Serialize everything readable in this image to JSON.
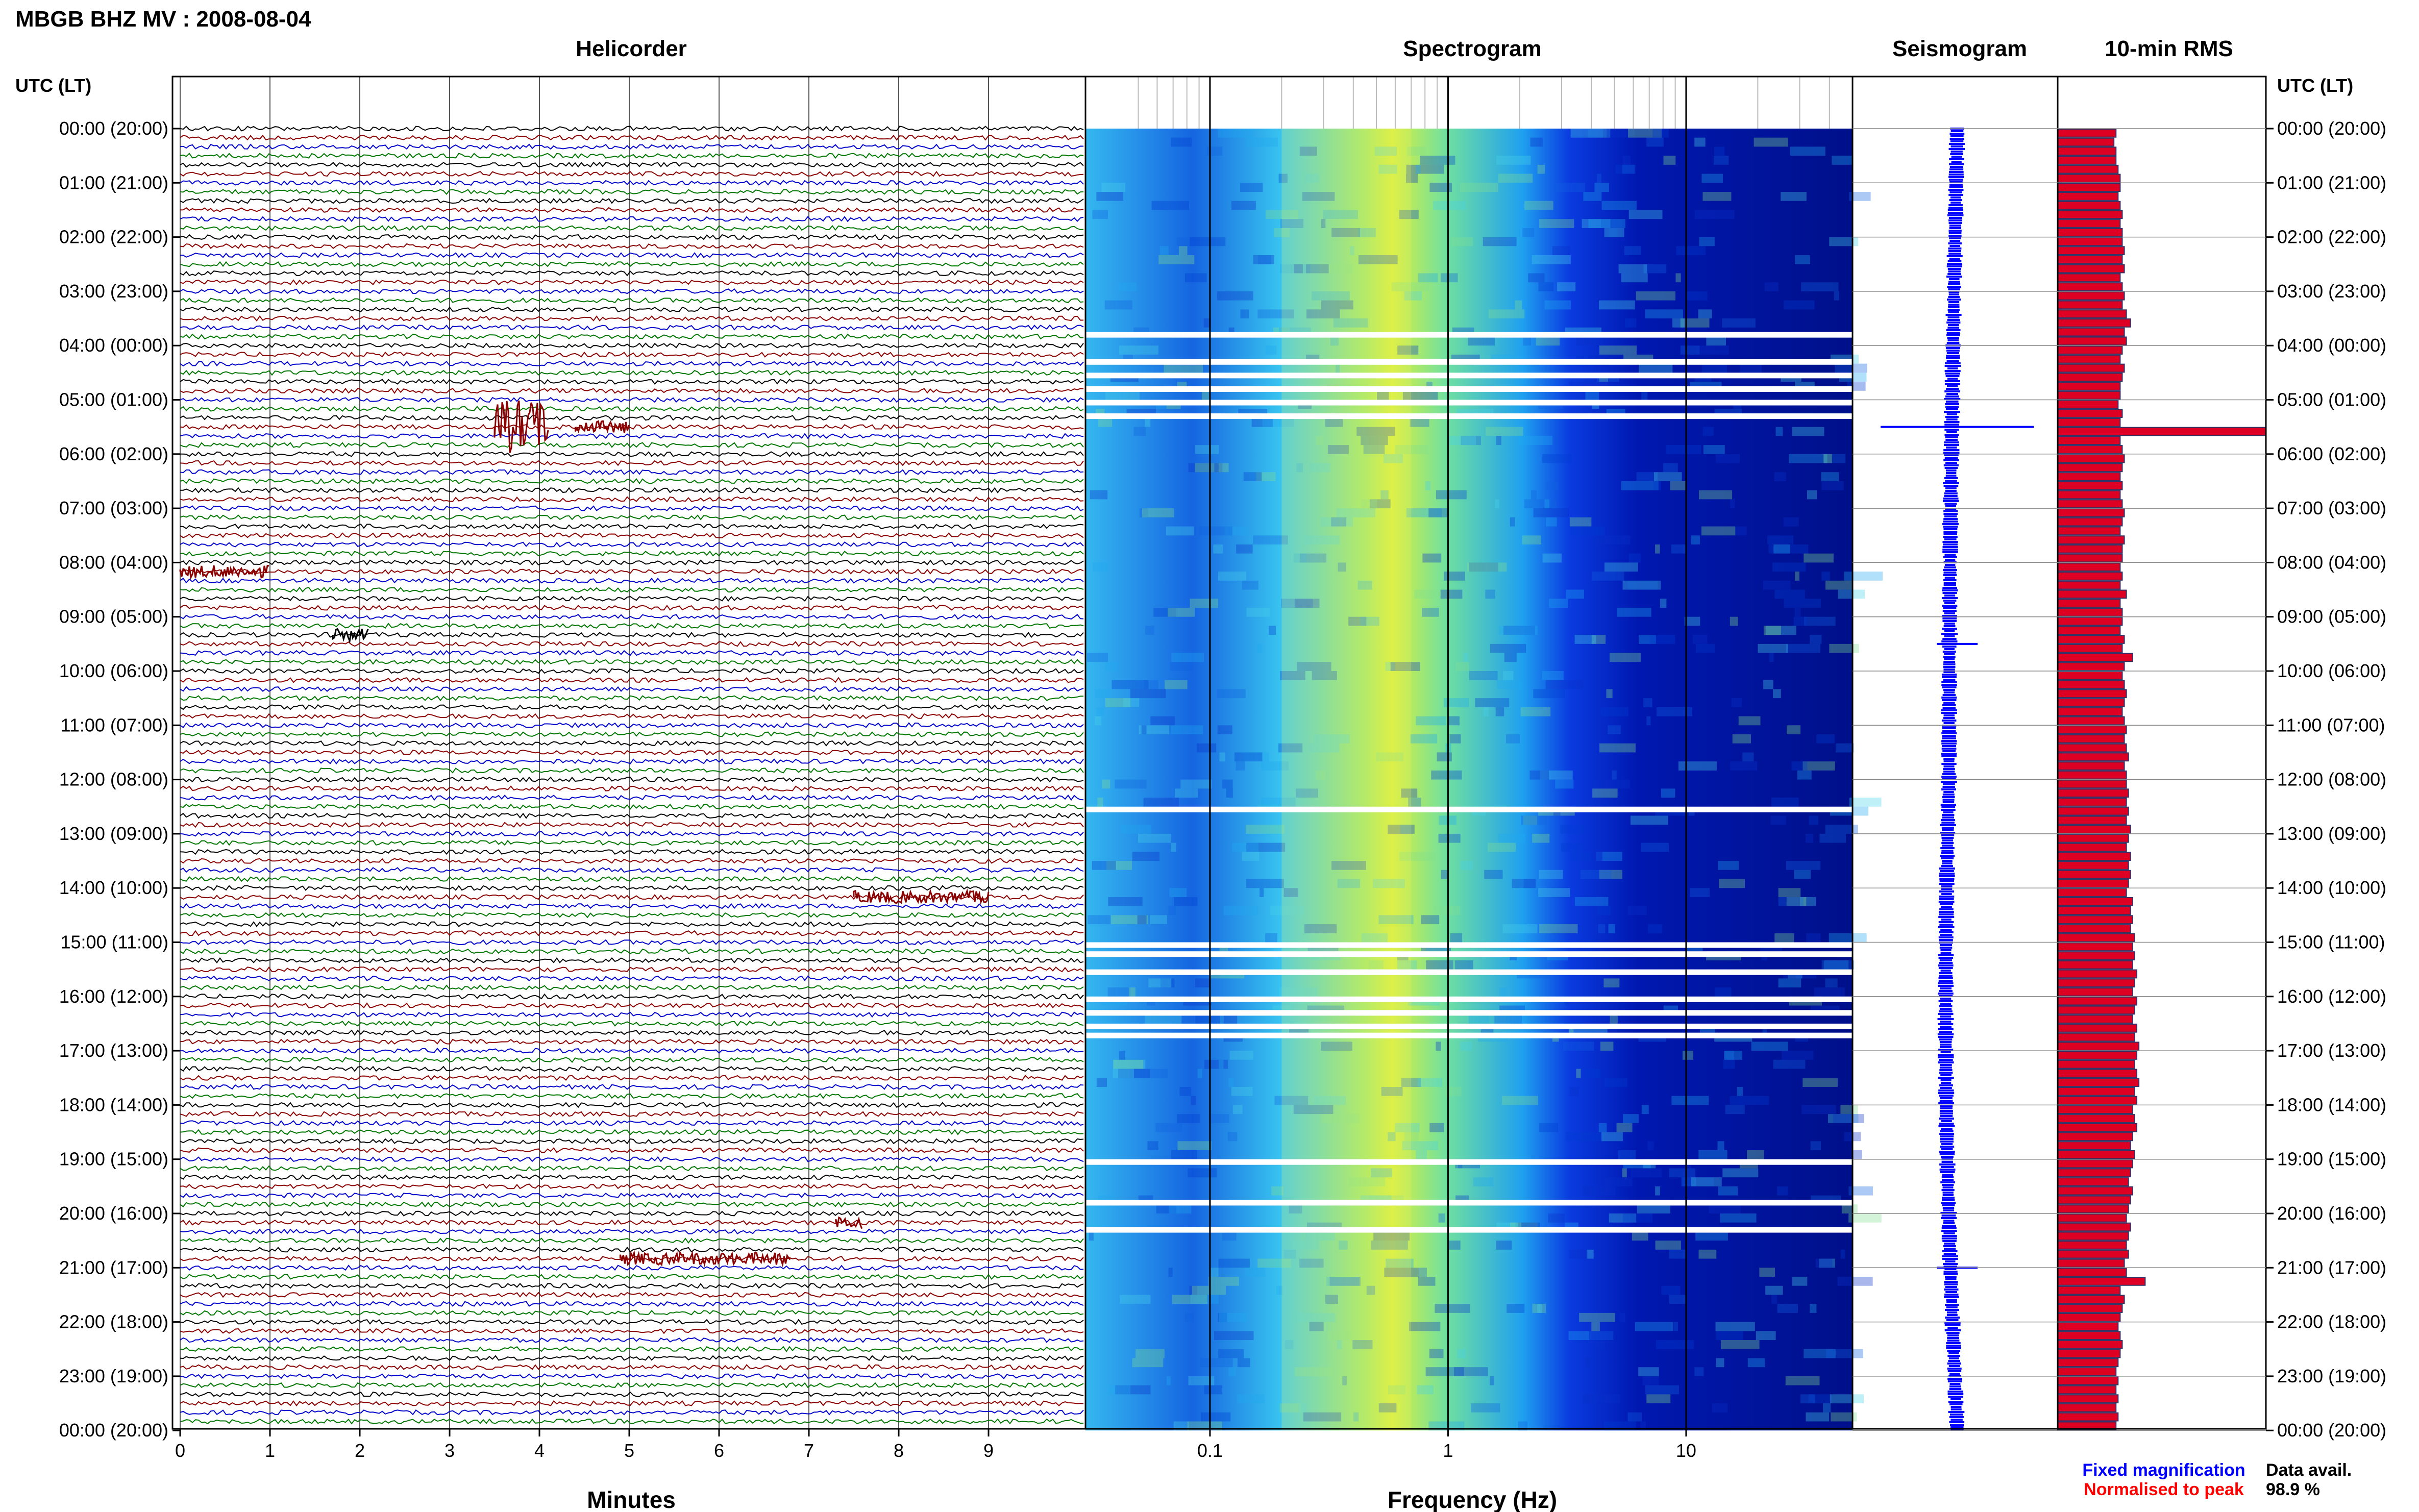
{
  "title": "MBGB BHZ MV : 2008-08-04",
  "panels": {
    "helicorder": "Helicorder",
    "spectrogram": "Spectrogram",
    "seismogram": "Seismogram",
    "rms": "10-min RMS"
  },
  "axis_headers": {
    "left": "UTC (LT)",
    "right": "UTC (LT)"
  },
  "time_labels": [
    "00:00 (20:00)",
    "01:00 (21:00)",
    "02:00 (22:00)",
    "03:00 (23:00)",
    "04:00 (00:00)",
    "05:00 (01:00)",
    "06:00 (02:00)",
    "07:00 (03:00)",
    "08:00 (04:00)",
    "09:00 (05:00)",
    "10:00 (06:00)",
    "11:00 (07:00)",
    "12:00 (08:00)",
    "13:00 (09:00)",
    "14:00 (10:00)",
    "15:00 (11:00)",
    "16:00 (12:00)",
    "17:00 (13:00)",
    "18:00 (14:00)",
    "19:00 (15:00)",
    "20:00 (16:00)",
    "21:00 (17:00)",
    "22:00 (18:00)",
    "23:00 (19:00)",
    "00:00 (20:00)"
  ],
  "minutes_axis": {
    "label": "Minutes",
    "ticks": [
      "0",
      "1",
      "2",
      "3",
      "4",
      "5",
      "6",
      "7",
      "8",
      "9"
    ]
  },
  "frequency_axis": {
    "label": "Frequency (Hz)",
    "ticks": [
      "0.1",
      "1",
      "10"
    ]
  },
  "legend": {
    "fixed": "Fixed magnification",
    "normalised": "Normalised to peak",
    "fixed_color": "#0000ff",
    "normalised_color": "#ff0000"
  },
  "data_avail": {
    "label": "Data avail.",
    "value": "98.9 %"
  },
  "colors": {
    "helicorder_traces": [
      "#000000",
      "#8b0000",
      "#0000cc",
      "#007700"
    ],
    "rms_fill": "#dd0022",
    "seismogram": "#0000ff"
  },
  "chart_data": [
    {
      "type": "line",
      "name": "helicorder",
      "xlabel": "Minutes",
      "xlim": [
        0,
        10
      ],
      "rows_per_hour": 6,
      "events": [
        {
          "time": "05:30",
          "start_min": 3.5,
          "end_min": 4.1,
          "amplitude": "large"
        },
        {
          "time": "05:30",
          "start_min": 4.4,
          "end_min": 5.0,
          "amplitude": "small"
        },
        {
          "time": "08:10",
          "start_min": 0.0,
          "end_min": 1.0,
          "amplitude": "small"
        },
        {
          "time": "09:20",
          "start_min": 1.7,
          "end_min": 2.1,
          "amplitude": "small"
        },
        {
          "time": "14:10",
          "start_min": 7.5,
          "end_min": 9.0,
          "amplitude": "small"
        },
        {
          "time": "20:10",
          "start_min": 7.3,
          "end_min": 7.6,
          "amplitude": "small"
        },
        {
          "time": "20:50",
          "start_min": 4.9,
          "end_min": 6.8,
          "amplitude": "small"
        }
      ]
    },
    {
      "type": "heatmap",
      "name": "spectrogram",
      "xlabel": "Frequency (Hz)",
      "xscale": "log",
      "xlim": [
        0.03,
        50
      ],
      "peak_band_hz": [
        0.2,
        0.7
      ],
      "data_gaps": [
        "03:45",
        "04:15",
        "04:30",
        "04:45",
        "05:00",
        "05:15",
        "12:30",
        "15:00",
        "15:10",
        "15:30",
        "16:00",
        "16:15",
        "16:30",
        "16:40",
        "19:00",
        "19:45",
        "20:15"
      ]
    },
    {
      "type": "line",
      "name": "seismogram",
      "events": [
        "05:30",
        "09:30",
        "21:00"
      ]
    },
    {
      "type": "bar",
      "name": "10-min RMS",
      "orientation": "horizontal",
      "rows_per_hour": 6,
      "relative_values": [
        0.28,
        0.27,
        0.28,
        0.28,
        0.29,
        0.3,
        0.3,
        0.29,
        0.3,
        0.31,
        0.3,
        0.31,
        0.31,
        0.32,
        0.31,
        0.32,
        0.3,
        0.31,
        0.32,
        0.31,
        0.33,
        0.35,
        0.32,
        0.33,
        0.31,
        0.3,
        0.32,
        0.31,
        0.3,
        0.3,
        0.29,
        0.31,
        0.3,
        1.0,
        0.3,
        0.31,
        0.32,
        0.31,
        0.3,
        0.31,
        0.3,
        0.31,
        0.32,
        0.31,
        0.3,
        0.32,
        0.31,
        0.31,
        0.3,
        0.31,
        0.3,
        0.33,
        0.3,
        0.31,
        0.31,
        0.3,
        0.32,
        0.31,
        0.36,
        0.32,
        0.31,
        0.32,
        0.33,
        0.32,
        0.31,
        0.32,
        0.33,
        0.32,
        0.33,
        0.34,
        0.32,
        0.33,
        0.33,
        0.34,
        0.33,
        0.34,
        0.33,
        0.35,
        0.34,
        0.33,
        0.35,
        0.34,
        0.35,
        0.34,
        0.33,
        0.36,
        0.35,
        0.36,
        0.35,
        0.37,
        0.36,
        0.37,
        0.36,
        0.38,
        0.37,
        0.36,
        0.38,
        0.37,
        0.36,
        0.38,
        0.37,
        0.39,
        0.38,
        0.37,
        0.38,
        0.39,
        0.37,
        0.38,
        0.36,
        0.37,
        0.38,
        0.36,
        0.35,
        0.37,
        0.36,
        0.35,
        0.34,
        0.36,
        0.35,
        0.34,
        0.33,
        0.35,
        0.34,
        0.33,
        0.34,
        0.32,
        0.33,
        0.42,
        0.3,
        0.32,
        0.31,
        0.3,
        0.29,
        0.3,
        0.31,
        0.3,
        0.29,
        0.28,
        0.29,
        0.28,
        0.29,
        0.28,
        0.29,
        0.28
      ]
    }
  ]
}
